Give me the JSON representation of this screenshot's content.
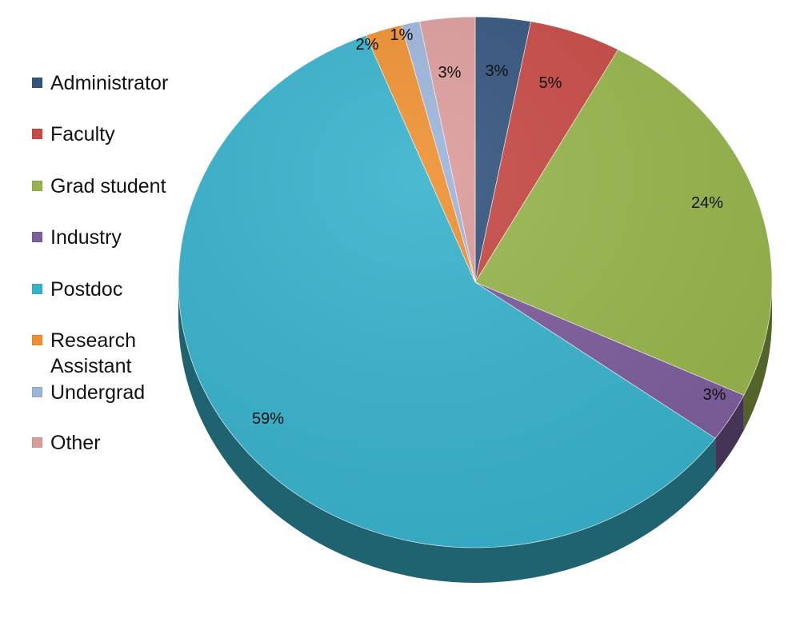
{
  "chart_data": {
    "type": "pie",
    "style": "3d",
    "legend_position": "left",
    "slices": [
      {
        "label": "Administrator",
        "value": 3,
        "data_label": "3%",
        "color": "#34557d"
      },
      {
        "label": "Faculty",
        "value": 5,
        "data_label": "5%",
        "color": "#c64a45"
      },
      {
        "label": "Grad student",
        "value": 24,
        "data_label": "24%",
        "color": "#97b54c"
      },
      {
        "label": "Industry",
        "value": 3,
        "data_label": "3%",
        "color": "#7d5d9c"
      },
      {
        "label": "Postdoc",
        "value": 59,
        "data_label": "59%",
        "color": "#38b2cc"
      },
      {
        "label": "Research Assistant",
        "value": 2,
        "data_label": "2%",
        "color": "#ee9031"
      },
      {
        "label": "Undergrad",
        "value": 1,
        "data_label": "1%",
        "color": "#9cb5da"
      },
      {
        "label": "Other",
        "value": 3,
        "data_label": "3%",
        "color": "#dc9c9c"
      }
    ]
  }
}
